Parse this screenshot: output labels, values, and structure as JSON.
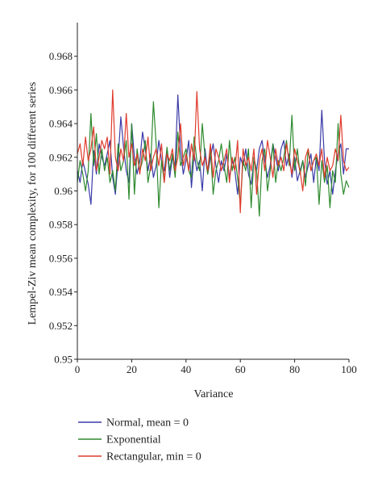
{
  "chart_data": {
    "type": "line",
    "xlabel": "Variance",
    "ylabel": "Lempel-Ziv mean complexity, for 100 different series",
    "xlim": [
      0,
      100
    ],
    "ylim": [
      0.95,
      0.97
    ],
    "x_ticks": [
      0,
      20,
      40,
      60,
      80,
      100
    ],
    "x_tick_labels": [
      "0",
      "20",
      "40",
      "60",
      "80",
      "100"
    ],
    "y_ticks": [
      0.95,
      0.952,
      0.954,
      0.956,
      0.958,
      0.96,
      0.962,
      0.964,
      0.966,
      0.968
    ],
    "y_tick_labels": [
      "0.95",
      "0.952",
      "0.954",
      "0.956",
      "0.958",
      "0.96",
      "0.962",
      "0.964",
      "0.966",
      "0.968"
    ],
    "grid": false,
    "legend_position": "bottom",
    "x": [
      0,
      1,
      2,
      3,
      4,
      5,
      6,
      7,
      8,
      9,
      10,
      11,
      12,
      13,
      14,
      15,
      16,
      17,
      18,
      19,
      20,
      21,
      22,
      23,
      24,
      25,
      26,
      27,
      28,
      29,
      30,
      31,
      32,
      33,
      34,
      35,
      36,
      37,
      38,
      39,
      40,
      41,
      42,
      43,
      44,
      45,
      46,
      47,
      48,
      49,
      50,
      51,
      52,
      53,
      54,
      55,
      56,
      57,
      58,
      59,
      60,
      61,
      62,
      63,
      64,
      65,
      66,
      67,
      68,
      69,
      70,
      71,
      72,
      73,
      74,
      75,
      76,
      77,
      78,
      79,
      80,
      81,
      82,
      83,
      84,
      85,
      86,
      87,
      88,
      89,
      90,
      91,
      92,
      93,
      94,
      95,
      96,
      97,
      98,
      99,
      100
    ],
    "series": [
      {
        "name": "Normal, mean = 0",
        "color": "#3a3aa8",
        "values": [
          0.9612,
          0.9605,
          0.9618,
          0.9611,
          0.9604,
          0.9592,
          0.9624,
          0.961,
          0.9628,
          0.962,
          0.9615,
          0.9622,
          0.963,
          0.9608,
          0.9598,
          0.9618,
          0.9644,
          0.9626,
          0.9612,
          0.9605,
          0.964,
          0.962,
          0.961,
          0.9618,
          0.9635,
          0.9625,
          0.9612,
          0.9622,
          0.9608,
          0.9615,
          0.963,
          0.9618,
          0.9612,
          0.9625,
          0.9608,
          0.962,
          0.9615,
          0.9657,
          0.9625,
          0.961,
          0.9618,
          0.963,
          0.9602,
          0.9622,
          0.9612,
          0.9618,
          0.96,
          0.9625,
          0.961,
          0.962,
          0.9628,
          0.9615,
          0.9605,
          0.9618,
          0.9612,
          0.9622,
          0.9608,
          0.9618,
          0.9612,
          0.9598,
          0.962,
          0.9615,
          0.9625,
          0.961,
          0.9604,
          0.9618,
          0.9612,
          0.9625,
          0.963,
          0.9618,
          0.9608,
          0.9615,
          0.9628,
          0.962,
          0.9612,
          0.9625,
          0.963,
          0.9615,
          0.9622,
          0.9608,
          0.962,
          0.9606,
          0.9612,
          0.9618,
          0.9608,
          0.9615,
          0.9622,
          0.9605,
          0.962,
          0.9612,
          0.9648,
          0.9618,
          0.9604,
          0.9612,
          0.9598,
          0.9612,
          0.9622,
          0.9628,
          0.961,
          0.9625,
          0.9625
        ]
      },
      {
        "name": "Exponential",
        "color": "#2e8a2e",
        "values": [
          0.9605,
          0.9618,
          0.961,
          0.96,
          0.9612,
          0.9646,
          0.9615,
          0.9634,
          0.961,
          0.9625,
          0.9612,
          0.962,
          0.9605,
          0.9612,
          0.96,
          0.9628,
          0.9612,
          0.9618,
          0.963,
          0.9595,
          0.964,
          0.9598,
          0.9625,
          0.9612,
          0.9618,
          0.963,
          0.9605,
          0.9615,
          0.9653,
          0.9628,
          0.959,
          0.9618,
          0.9605,
          0.9626,
          0.9612,
          0.9622,
          0.9608,
          0.9635,
          0.9615,
          0.962,
          0.9625,
          0.9612,
          0.9608,
          0.9632,
          0.9618,
          0.9612,
          0.964,
          0.962,
          0.961,
          0.9625,
          0.9598,
          0.9612,
          0.9618,
          0.9628,
          0.9615,
          0.9605,
          0.963,
          0.9612,
          0.962,
          0.9608,
          0.9592,
          0.9618,
          0.9612,
          0.9625,
          0.959,
          0.962,
          0.9612,
          0.9585,
          0.9618,
          0.9625,
          0.96,
          0.9612,
          0.9628,
          0.9605,
          0.9618,
          0.9612,
          0.962,
          0.963,
          0.9615,
          0.9645,
          0.9612,
          0.9625,
          0.961,
          0.9618,
          0.9603,
          0.9625,
          0.9612,
          0.9618,
          0.962,
          0.9592,
          0.9618,
          0.9605,
          0.9615,
          0.959,
          0.9612,
          0.9605,
          0.964,
          0.961,
          0.9598,
          0.9606,
          0.9602
        ]
      },
      {
        "name": "Rectangular, min = 0",
        "color": "#e03b2c",
        "values": [
          0.9622,
          0.9628,
          0.9615,
          0.9632,
          0.9618,
          0.9625,
          0.9638,
          0.9612,
          0.962,
          0.963,
          0.9625,
          0.9632,
          0.961,
          0.966,
          0.962,
          0.9612,
          0.9625,
          0.9618,
          0.9646,
          0.962,
          0.9628,
          0.9615,
          0.9622,
          0.961,
          0.9625,
          0.9618,
          0.9632,
          0.9612,
          0.962,
          0.9625,
          0.9615,
          0.9628,
          0.9605,
          0.9622,
          0.9618,
          0.9625,
          0.9612,
          0.962,
          0.964,
          0.9615,
          0.9622,
          0.9612,
          0.9628,
          0.9618,
          0.9659,
          0.9625,
          0.9615,
          0.962,
          0.9612,
          0.9628,
          0.9608,
          0.9625,
          0.962,
          0.9612,
          0.9618,
          0.9625,
          0.9605,
          0.962,
          0.9612,
          0.963,
          0.9587,
          0.9625,
          0.9615,
          0.962,
          0.9612,
          0.9625,
          0.9598,
          0.9618,
          0.9625,
          0.9612,
          0.963,
          0.962,
          0.9608,
          0.9625,
          0.9615,
          0.962,
          0.9612,
          0.9628,
          0.9618,
          0.961,
          0.9625,
          0.9618,
          0.9612,
          0.96,
          0.962,
          0.9625,
          0.9612,
          0.9618,
          0.9622,
          0.9615,
          0.9625,
          0.9608,
          0.962,
          0.9612,
          0.9615,
          0.9625,
          0.9618,
          0.9645,
          0.9618,
          0.9612,
          0.9614
        ]
      }
    ]
  }
}
